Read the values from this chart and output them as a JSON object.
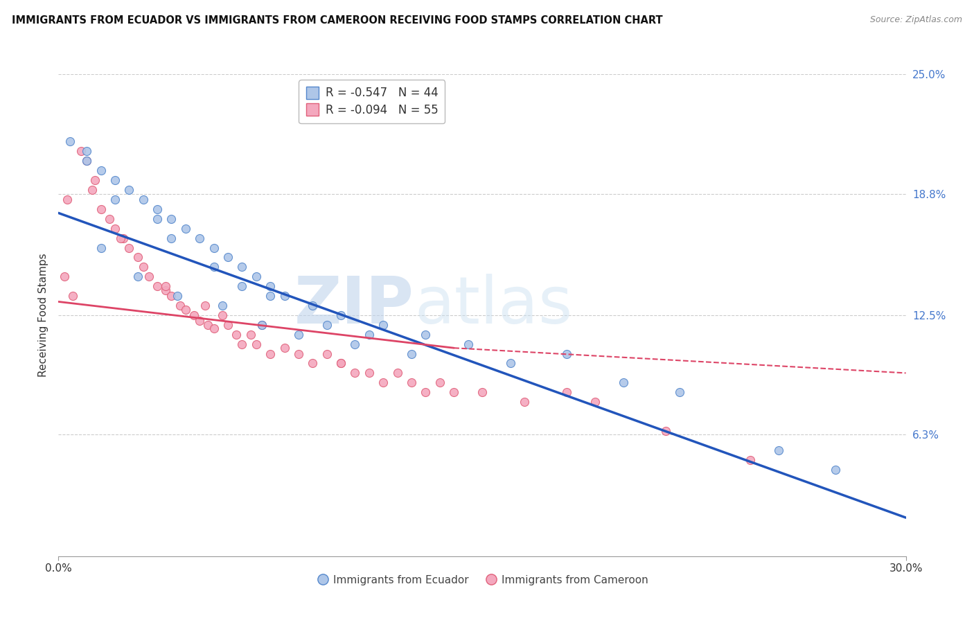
{
  "title": "IMMIGRANTS FROM ECUADOR VS IMMIGRANTS FROM CAMEROON RECEIVING FOOD STAMPS CORRELATION CHART",
  "source": "Source: ZipAtlas.com",
  "ylabel": "Receiving Food Stamps",
  "xlim": [
    0.0,
    30.0
  ],
  "ylim": [
    0.0,
    25.0
  ],
  "xticklabels": [
    "0.0%",
    "30.0%"
  ],
  "ytick_positions": [
    6.3,
    12.5,
    18.8,
    25.0
  ],
  "ytick_labels": [
    "6.3%",
    "12.5%",
    "18.8%",
    "25.0%"
  ],
  "ecuador_color": "#aec6e8",
  "cameroon_color": "#f4a8be",
  "ecuador_edge": "#5588cc",
  "cameroon_edge": "#e0607a",
  "legend_ecuador_R": "-0.547",
  "legend_ecuador_N": "44",
  "legend_cameroon_R": "-0.094",
  "legend_cameroon_N": "55",
  "ecuador_scatter_x": [
    0.4,
    1.0,
    1.5,
    2.0,
    2.5,
    3.0,
    3.5,
    4.0,
    4.5,
    5.0,
    5.5,
    6.0,
    6.5,
    7.0,
    7.5,
    8.0,
    9.0,
    10.0,
    11.5,
    13.0,
    14.5,
    16.0,
    18.0,
    20.0,
    22.0,
    25.5,
    27.5,
    1.5,
    2.8,
    4.2,
    5.8,
    7.2,
    8.5,
    10.5,
    12.5,
    1.0,
    3.5,
    5.5,
    7.5,
    9.5,
    11.0,
    2.0,
    4.0,
    6.5
  ],
  "ecuador_scatter_y": [
    21.5,
    20.5,
    20.0,
    19.5,
    19.0,
    18.5,
    18.0,
    17.5,
    17.0,
    16.5,
    16.0,
    15.5,
    15.0,
    14.5,
    14.0,
    13.5,
    13.0,
    12.5,
    12.0,
    11.5,
    11.0,
    10.0,
    10.5,
    9.0,
    8.5,
    5.5,
    4.5,
    16.0,
    14.5,
    13.5,
    13.0,
    12.0,
    11.5,
    11.0,
    10.5,
    21.0,
    17.5,
    15.0,
    13.5,
    12.0,
    11.5,
    18.5,
    16.5,
    14.0
  ],
  "cameroon_scatter_x": [
    0.2,
    0.5,
    0.8,
    1.0,
    1.3,
    1.5,
    1.8,
    2.0,
    2.3,
    2.5,
    2.8,
    3.0,
    3.2,
    3.5,
    3.8,
    4.0,
    4.3,
    4.5,
    4.8,
    5.0,
    5.3,
    5.5,
    5.8,
    6.0,
    6.3,
    6.5,
    6.8,
    7.0,
    7.5,
    8.0,
    8.5,
    9.0,
    9.5,
    10.0,
    10.5,
    11.0,
    11.5,
    12.0,
    12.5,
    13.0,
    13.5,
    14.0,
    15.0,
    16.5,
    18.0,
    19.0,
    21.5,
    24.5,
    0.3,
    1.2,
    2.2,
    3.8,
    5.2,
    7.2,
    10.0
  ],
  "cameroon_scatter_y": [
    14.5,
    13.5,
    21.0,
    20.5,
    19.5,
    18.0,
    17.5,
    17.0,
    16.5,
    16.0,
    15.5,
    15.0,
    14.5,
    14.0,
    13.8,
    13.5,
    13.0,
    12.8,
    12.5,
    12.2,
    12.0,
    11.8,
    12.5,
    12.0,
    11.5,
    11.0,
    11.5,
    11.0,
    10.5,
    10.8,
    10.5,
    10.0,
    10.5,
    10.0,
    9.5,
    9.5,
    9.0,
    9.5,
    9.0,
    8.5,
    9.0,
    8.5,
    8.5,
    8.0,
    8.5,
    8.0,
    6.5,
    5.0,
    18.5,
    19.0,
    16.5,
    14.0,
    13.0,
    12.0,
    10.0
  ],
  "ecuador_line_x0": 0.0,
  "ecuador_line_y0": 17.8,
  "ecuador_line_x1": 30.0,
  "ecuador_line_y1": 2.0,
  "cameroon_solid_x0": 0.0,
  "cameroon_solid_y0": 13.2,
  "cameroon_solid_x1": 14.0,
  "cameroon_solid_y1": 10.8,
  "cameroon_dash_x0": 14.0,
  "cameroon_dash_y0": 10.8,
  "cameroon_dash_x1": 30.0,
  "cameroon_dash_y1": 9.5,
  "watermark_zip": "ZIP",
  "watermark_atlas": "atlas",
  "background_color": "#ffffff",
  "title_fontsize": 10.5,
  "marker_size": 75
}
